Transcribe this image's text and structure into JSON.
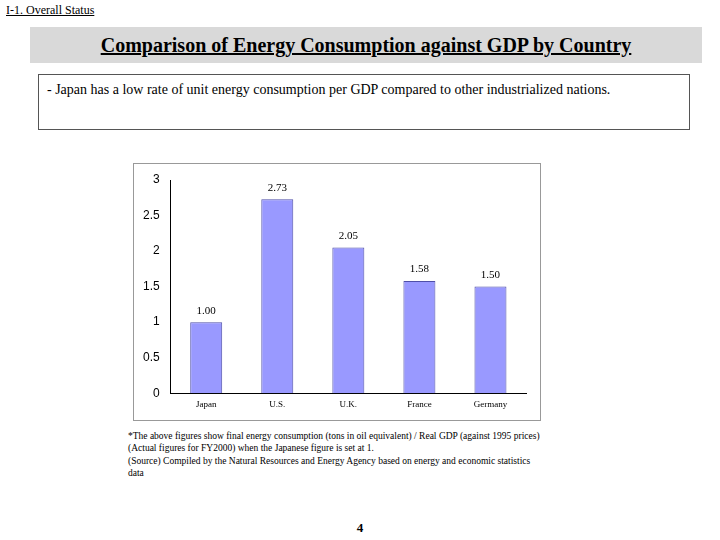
{
  "page": {
    "section": "I-1. Overall Status",
    "title": "Comparison of Energy Consumption against GDP by Country",
    "summary": "- Japan has a low rate of unit energy consumption per GDP compared to other industrialized nations.",
    "notes": [
      "*The above figures show final energy consumption (tons in oil equivalent) / Real GDP (against 1995 prices) (Actual figures for FY2000) when the Japanese figure is set at 1.",
      "(Source) Compiled by the Natural Resources and Energy Agency based on energy and economic statistics data"
    ],
    "page_number": "4"
  },
  "chart_data": {
    "type": "bar",
    "categories": [
      "Japan",
      "U.S.",
      "U.K.",
      "France",
      "Germany"
    ],
    "values": [
      1.0,
      2.73,
      2.05,
      1.58,
      1.5
    ],
    "value_labels": [
      "1.00",
      "2.73",
      "2.05",
      "1.58",
      "1.50"
    ],
    "color": "#9999ff",
    "ylim": [
      0,
      3
    ],
    "yticks": [
      0,
      0.5,
      1,
      1.5,
      2,
      2.5,
      3
    ],
    "grid": false,
    "data_labels": true
  }
}
